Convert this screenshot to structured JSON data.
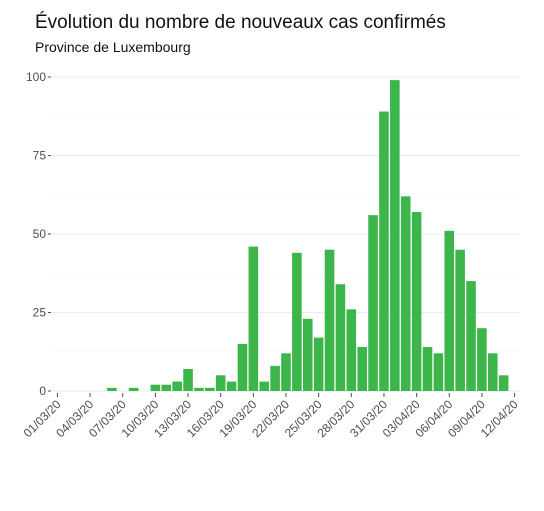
{
  "chart_data": {
    "type": "bar",
    "title": "Évolution du nombre de nouveaux cas confirmés",
    "subtitle": "Province de Luxembourg",
    "xlabel": "",
    "ylabel": "",
    "ylim": [
      0,
      100
    ],
    "yticks": [
      0,
      25,
      50,
      75,
      100
    ],
    "grid": true,
    "bar_color": "#3cb54a",
    "x_tick_labels": [
      "01/03/20",
      "04/03/20",
      "07/03/20",
      "10/03/20",
      "13/03/20",
      "16/03/20",
      "19/03/20",
      "22/03/20",
      "25/03/20",
      "28/03/20",
      "31/03/20",
      "03/04/20",
      "06/04/20",
      "09/04/20",
      "12/04/20"
    ],
    "categories": [
      "01/03/20",
      "02/03/20",
      "03/03/20",
      "04/03/20",
      "05/03/20",
      "06/03/20",
      "07/03/20",
      "08/03/20",
      "09/03/20",
      "10/03/20",
      "11/03/20",
      "12/03/20",
      "13/03/20",
      "14/03/20",
      "15/03/20",
      "16/03/20",
      "17/03/20",
      "18/03/20",
      "19/03/20",
      "20/03/20",
      "21/03/20",
      "22/03/20",
      "23/03/20",
      "24/03/20",
      "25/03/20",
      "26/03/20",
      "27/03/20",
      "28/03/20",
      "29/03/20",
      "30/03/20",
      "31/03/20",
      "01/04/20",
      "02/04/20",
      "03/04/20",
      "04/04/20",
      "05/04/20",
      "06/04/20",
      "07/04/20",
      "08/04/20",
      "09/04/20",
      "10/04/20",
      "11/04/20",
      "12/04/20"
    ],
    "values": [
      0,
      0,
      0,
      0,
      0,
      1,
      0,
      1,
      0,
      2,
      2,
      3,
      7,
      1,
      1,
      5,
      3,
      15,
      46,
      3,
      8,
      12,
      44,
      23,
      17,
      45,
      34,
      26,
      14,
      56,
      89,
      99,
      62,
      57,
      14,
      12,
      51,
      45,
      35,
      20,
      12,
      5,
      0
    ]
  }
}
